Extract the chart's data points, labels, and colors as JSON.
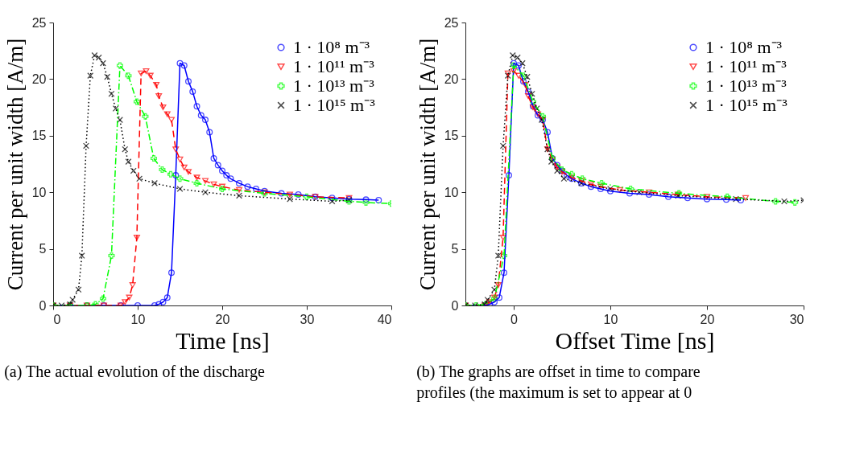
{
  "chart_data": [
    {
      "type": "line",
      "xlabel": "Time [ns]",
      "ylabel": "Current per unit width [A/m]",
      "xlim": [
        0,
        40
      ],
      "xticks": [
        0,
        10,
        20,
        30,
        40
      ],
      "ylim": [
        0,
        25
      ],
      "yticks": [
        0,
        5,
        10,
        15,
        20,
        25
      ],
      "grid": false,
      "legend": "top right",
      "annotations": [
        "(a) The actual evolution of the discharge"
      ],
      "series": [
        {
          "name": "1 · 10⁸ m⁻³",
          "color": "#0000ff",
          "marker": "circle",
          "line_style": "solid",
          "x": [
            0,
            2,
            4,
            6,
            8,
            10,
            12,
            12.5,
            13,
            13.5,
            14,
            14.5,
            15,
            15.5,
            16,
            16.5,
            17,
            17.5,
            18,
            18.5,
            19,
            19.5,
            20,
            20.5,
            21,
            22,
            23,
            24,
            25,
            27,
            29,
            31,
            33,
            35,
            37,
            38.5
          ],
          "values": [
            0,
            0,
            0,
            0,
            0,
            0,
            0,
            0.1,
            0.3,
            0.7,
            2.9,
            11.5,
            21.4,
            21.2,
            19.8,
            18.9,
            17.6,
            16.8,
            16.4,
            15.3,
            13.0,
            12.4,
            11.9,
            11.5,
            11.2,
            10.8,
            10.5,
            10.3,
            10.1,
            9.9,
            9.8,
            9.6,
            9.5,
            9.4,
            9.35,
            9.3
          ]
        },
        {
          "name": "1 · 10¹¹ m⁻³",
          "color": "#ff0000",
          "marker": "triangle",
          "line_style": "dashed",
          "x": [
            0,
            2,
            4,
            6,
            8,
            8.5,
            9,
            9.4,
            9.9,
            10.4,
            11,
            11.5,
            12.2,
            12.5,
            13,
            13.5,
            14,
            14.5,
            15,
            15.5,
            16,
            17,
            18,
            19,
            20,
            22,
            25,
            28,
            31,
            35
          ],
          "values": [
            0,
            0,
            0,
            0,
            0,
            0.3,
            0.7,
            1.8,
            6.0,
            20.5,
            20.7,
            20.3,
            19.5,
            18.5,
            17.5,
            16.9,
            16.4,
            13.8,
            12.9,
            12.2,
            11.8,
            11.3,
            11.0,
            10.7,
            10.5,
            10.2,
            10.0,
            9.8,
            9.6,
            9.5
          ]
        },
        {
          "name": "1 · 10¹³ m⁻³",
          "color": "#00ff00",
          "marker": "cross",
          "line_style": "dashdot",
          "x": [
            0,
            2,
            4,
            5,
            5.9,
            6.9,
            7.9,
            8.9,
            9.9,
            10.9,
            11.9,
            12.9,
            13.9,
            15,
            17,
            20,
            25,
            30,
            35,
            37,
            40
          ],
          "values": [
            0,
            0,
            0,
            0.1,
            0.6,
            4.4,
            21.2,
            20.3,
            18.0,
            16.7,
            13.0,
            12.0,
            11.6,
            11.2,
            10.8,
            10.3,
            9.9,
            9.6,
            9.2,
            9.1,
            9.0
          ]
        },
        {
          "name": "1 · 10¹⁵ m⁻³",
          "color": "#000000",
          "marker": "x",
          "line_style": "dotted",
          "x": [
            0,
            1,
            2,
            2.3,
            3.0,
            3.4,
            3.9,
            4.4,
            4.9,
            5.4,
            5.9,
            6.4,
            6.9,
            7.4,
            7.9,
            8.5,
            8.9,
            9.5,
            10.2,
            12,
            15,
            18,
            22,
            28,
            33,
            35
          ],
          "values": [
            0,
            0,
            0.1,
            0.5,
            1.4,
            4.4,
            14.1,
            20.3,
            22.1,
            21.9,
            21.4,
            20.2,
            18.7,
            17.4,
            16.4,
            13.8,
            12.7,
            11.9,
            11.2,
            10.8,
            10.3,
            10.0,
            9.7,
            9.4,
            9.2,
            9.3
          ]
        }
      ]
    },
    {
      "type": "line",
      "xlabel": "Offset Time [ns]",
      "ylabel": "Current per unit width [A/m]",
      "xlim": [
        -5,
        30
      ],
      "xticks": [
        0,
        10,
        20,
        30
      ],
      "ylim": [
        0,
        25
      ],
      "yticks": [
        0,
        5,
        10,
        15,
        20,
        25
      ],
      "grid": false,
      "legend": "top right",
      "annotations": [
        "(b) The graphs are offset in time to compare",
        "profiles (the maximum is set to appear at 0"
      ],
      "series": [
        {
          "name": "1 · 10⁸ m⁻³",
          "color": "#0000ff",
          "marker": "circle",
          "line_style": "solid",
          "x": [
            -5,
            -3,
            -2.5,
            -2,
            -1.5,
            -1,
            -0.5,
            0,
            0.5,
            1,
            1.5,
            2,
            2.5,
            3,
            3.5,
            4,
            4.5,
            5,
            5.5,
            6,
            7,
            8,
            9,
            10,
            12,
            14,
            16,
            18,
            20,
            22,
            23.5
          ],
          "values": [
            0,
            0,
            0.1,
            0.3,
            0.7,
            2.9,
            11.5,
            21.4,
            21.2,
            19.8,
            18.9,
            17.6,
            16.8,
            16.4,
            15.3,
            13.0,
            12.4,
            11.9,
            11.5,
            11.2,
            10.8,
            10.5,
            10.3,
            10.1,
            9.9,
            9.8,
            9.6,
            9.5,
            9.4,
            9.35,
            9.3
          ]
        },
        {
          "name": "1 · 10¹¹ m⁻³",
          "color": "#ff0000",
          "marker": "triangle",
          "line_style": "dashed",
          "x": [
            -5,
            -3,
            -2.5,
            -2,
            -1.6,
            -1.1,
            -0.6,
            0,
            0.5,
            1.2,
            1.5,
            2,
            2.5,
            3,
            3.5,
            4,
            4.5,
            5,
            6,
            7,
            8,
            9,
            11,
            14,
            17,
            20,
            24
          ],
          "values": [
            0,
            0,
            0.3,
            0.7,
            1.8,
            6.0,
            20.5,
            20.7,
            20.3,
            19.5,
            18.5,
            17.5,
            16.9,
            16.4,
            13.8,
            12.9,
            12.2,
            11.8,
            11.3,
            11.0,
            10.7,
            10.5,
            10.2,
            10.0,
            9.8,
            9.6,
            9.5
          ]
        },
        {
          "name": "1 · 10¹³ m⁻³",
          "color": "#00ff00",
          "marker": "cross",
          "line_style": "dashdot",
          "x": [
            -5,
            -3.9,
            -2.9,
            -2,
            -1,
            0,
            1,
            2,
            3,
            4,
            5,
            6,
            7.1,
            9.1,
            12.1,
            17.1,
            22.1,
            27.1,
            29.1
          ],
          "values": [
            0,
            0,
            0.1,
            0.6,
            4.4,
            21.2,
            20.3,
            18.0,
            16.7,
            13.0,
            12.0,
            11.6,
            11.2,
            10.8,
            10.3,
            9.9,
            9.6,
            9.2,
            9.1
          ]
        },
        {
          "name": "1 · 10¹⁵ m⁻³",
          "color": "#000000",
          "marker": "x",
          "line_style": "dotted",
          "x": [
            -5,
            -4,
            -3,
            -2.7,
            -2,
            -1.6,
            -1.1,
            -0.6,
            -0.1,
            0.4,
            0.9,
            1.4,
            1.9,
            2.4,
            2.9,
            3.5,
            3.9,
            4.5,
            5.2,
            7,
            10,
            13,
            17,
            23,
            28,
            30
          ],
          "values": [
            0,
            0,
            0.1,
            0.5,
            1.4,
            4.4,
            14.1,
            20.3,
            22.1,
            21.9,
            21.4,
            20.2,
            18.7,
            17.4,
            16.4,
            13.8,
            12.7,
            11.9,
            11.2,
            10.8,
            10.3,
            10.0,
            9.7,
            9.4,
            9.2,
            9.3
          ]
        }
      ]
    }
  ]
}
